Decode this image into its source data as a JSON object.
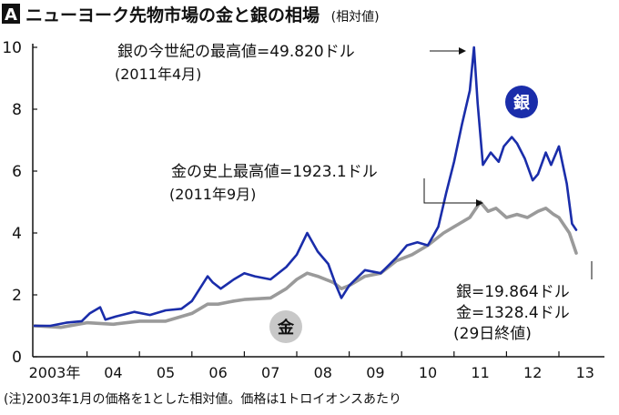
{
  "panel_letter": "A",
  "title": "ニューヨーク先物市場の金と銀の相場",
  "subtitle": "(相対値)",
  "note": "(注)2003年1月の価格を1とした相対値。価格は1トロイオンスあたり",
  "colors": {
    "silver_line": "#1a2daa",
    "gold_line": "#9a9a9a",
    "silver_badge": "#1a2daa",
    "gold_badge": "#c8c8c8"
  },
  "annotations": {
    "silver_peak": {
      "line1": "銀の今世紀の最高値=49.820ドル",
      "line2": "(2011年4月)"
    },
    "gold_peak": {
      "line1": "金の史上最高値=1923.1ドル",
      "line2": "(2011年9月)"
    }
  },
  "summary": {
    "silver": "銀=19.864ドル",
    "gold": "金=1328.4ドル",
    "date": "(29日終値)"
  },
  "badges": {
    "silver": "銀",
    "gold": "金"
  },
  "chart_data": {
    "type": "line",
    "ylim": [
      0,
      10
    ],
    "y_ticks": [
      "0",
      "2",
      "4",
      "6",
      "8",
      "10"
    ],
    "x_tick_labels": [
      "2003年",
      "04",
      "05",
      "06",
      "07",
      "08",
      "09",
      "10",
      "11",
      "12",
      "13"
    ],
    "x_unit": "year",
    "grid": false,
    "series": [
      {
        "name": "銀",
        "x": [
          2003.0,
          2003.3,
          2003.6,
          2003.9,
          2004.05,
          2004.25,
          2004.35,
          2004.55,
          2004.9,
          2005.2,
          2005.5,
          2005.8,
          2006.0,
          2006.3,
          2006.4,
          2006.55,
          2006.8,
          2007.0,
          2007.2,
          2007.5,
          2007.8,
          2008.0,
          2008.2,
          2008.4,
          2008.6,
          2008.75,
          2008.85,
          2009.0,
          2009.3,
          2009.6,
          2009.9,
          2010.1,
          2010.3,
          2010.5,
          2010.7,
          2010.85,
          2011.0,
          2011.15,
          2011.3,
          2011.38,
          2011.45,
          2011.55,
          2011.7,
          2011.85,
          2011.95,
          2012.1,
          2012.2,
          2012.35,
          2012.5,
          2012.6,
          2012.75,
          2012.85,
          2013.0,
          2013.15,
          2013.25,
          2013.33
        ],
        "values": [
          1.0,
          1.0,
          1.1,
          1.15,
          1.4,
          1.6,
          1.2,
          1.3,
          1.45,
          1.35,
          1.5,
          1.55,
          1.8,
          2.6,
          2.4,
          2.2,
          2.5,
          2.7,
          2.6,
          2.5,
          2.9,
          3.3,
          4.0,
          3.4,
          3.0,
          2.3,
          1.9,
          2.3,
          2.8,
          2.7,
          3.2,
          3.6,
          3.7,
          3.6,
          4.2,
          5.3,
          6.3,
          7.5,
          8.6,
          10.0,
          8.2,
          6.2,
          6.6,
          6.3,
          6.8,
          7.1,
          6.9,
          6.4,
          5.7,
          5.9,
          6.6,
          6.2,
          6.8,
          5.6,
          4.3,
          4.1
        ]
      },
      {
        "name": "金",
        "x": [
          2003.0,
          2003.5,
          2004.0,
          2004.5,
          2005.0,
          2005.5,
          2006.0,
          2006.3,
          2006.5,
          2006.8,
          2007.0,
          2007.5,
          2007.8,
          2008.0,
          2008.2,
          2008.4,
          2008.7,
          2008.85,
          2009.0,
          2009.3,
          2009.6,
          2009.9,
          2010.2,
          2010.5,
          2010.8,
          2011.0,
          2011.3,
          2011.5,
          2011.65,
          2011.8,
          2012.0,
          2012.2,
          2012.4,
          2012.6,
          2012.75,
          2012.9,
          2013.0,
          2013.2,
          2013.33
        ],
        "values": [
          1.0,
          0.95,
          1.1,
          1.05,
          1.15,
          1.15,
          1.4,
          1.7,
          1.7,
          1.8,
          1.85,
          1.9,
          2.2,
          2.5,
          2.7,
          2.6,
          2.4,
          2.2,
          2.3,
          2.6,
          2.7,
          3.1,
          3.3,
          3.6,
          4.0,
          4.2,
          4.5,
          5.0,
          4.7,
          4.8,
          4.5,
          4.6,
          4.5,
          4.7,
          4.8,
          4.6,
          4.5,
          4.0,
          3.35
        ]
      }
    ]
  }
}
